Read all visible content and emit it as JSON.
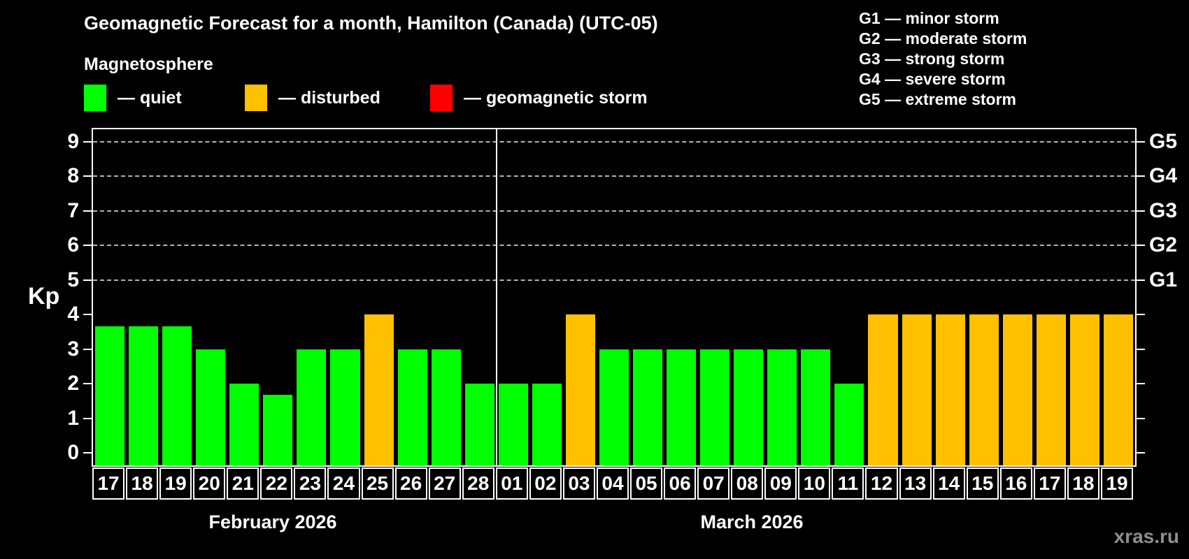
{
  "title": "Geomagnetic Forecast for a month, Hamilton (Canada) (UTC-05)",
  "legend": {
    "heading": "Magnetosphere",
    "items": [
      {
        "key": "quiet",
        "label": "— quiet",
        "color": "#00ff00"
      },
      {
        "key": "disturbed",
        "label": "— disturbed",
        "color": "#ffc000"
      },
      {
        "key": "storm",
        "label": "— geomagnetic storm",
        "color": "#ff0000"
      }
    ]
  },
  "storm_scale_legend": [
    {
      "code": "G1",
      "text": "G1 — minor storm"
    },
    {
      "code": "G2",
      "text": "G2 — moderate storm"
    },
    {
      "code": "G3",
      "text": "G3 — strong storm"
    },
    {
      "code": "G4",
      "text": "G4 — severe storm"
    },
    {
      "code": "G5",
      "text": "G5 — extreme storm"
    }
  ],
  "watermark": "xras.ru",
  "chart_data": {
    "type": "bar",
    "ylabel": "Kp",
    "ylim": [
      0,
      9
    ],
    "yticks": [
      0,
      1,
      2,
      3,
      4,
      5,
      6,
      7,
      8,
      9
    ],
    "gridlines_at": [
      5,
      6,
      7,
      8,
      9
    ],
    "grid": "dashed",
    "legend_position": "top-left",
    "right_axis_ticks": [
      {
        "kp": 5,
        "label": "G1"
      },
      {
        "kp": 6,
        "label": "G2"
      },
      {
        "kp": 7,
        "label": "G3"
      },
      {
        "kp": 8,
        "label": "G4"
      },
      {
        "kp": 9,
        "label": "G5"
      }
    ],
    "status_colors": {
      "quiet": "#00ff00",
      "disturbed": "#ffc000",
      "storm": "#ff0000"
    },
    "months": [
      {
        "label": "February 2026",
        "days": [
          {
            "day": "17",
            "kp": 3.67,
            "status": "quiet"
          },
          {
            "day": "18",
            "kp": 3.67,
            "status": "quiet"
          },
          {
            "day": "19",
            "kp": 3.67,
            "status": "quiet"
          },
          {
            "day": "20",
            "kp": 3,
            "status": "quiet"
          },
          {
            "day": "21",
            "kp": 2,
            "status": "quiet"
          },
          {
            "day": "22",
            "kp": 1.67,
            "status": "quiet"
          },
          {
            "day": "23",
            "kp": 3,
            "status": "quiet"
          },
          {
            "day": "24",
            "kp": 3,
            "status": "quiet"
          },
          {
            "day": "25",
            "kp": 4,
            "status": "disturbed"
          },
          {
            "day": "26",
            "kp": 3,
            "status": "quiet"
          },
          {
            "day": "27",
            "kp": 3,
            "status": "quiet"
          },
          {
            "day": "28",
            "kp": 2,
            "status": "quiet"
          }
        ]
      },
      {
        "label": "March 2026",
        "days": [
          {
            "day": "01",
            "kp": 2,
            "status": "quiet"
          },
          {
            "day": "02",
            "kp": 2,
            "status": "quiet"
          },
          {
            "day": "03",
            "kp": 4,
            "status": "disturbed"
          },
          {
            "day": "04",
            "kp": 3,
            "status": "quiet"
          },
          {
            "day": "05",
            "kp": 3,
            "status": "quiet"
          },
          {
            "day": "06",
            "kp": 3,
            "status": "quiet"
          },
          {
            "day": "07",
            "kp": 3,
            "status": "quiet"
          },
          {
            "day": "08",
            "kp": 3,
            "status": "quiet"
          },
          {
            "day": "09",
            "kp": 3,
            "status": "quiet"
          },
          {
            "day": "10",
            "kp": 3,
            "status": "quiet"
          },
          {
            "day": "11",
            "kp": 2,
            "status": "quiet"
          },
          {
            "day": "12",
            "kp": 4,
            "status": "disturbed"
          },
          {
            "day": "13",
            "kp": 4,
            "status": "disturbed"
          },
          {
            "day": "14",
            "kp": 4,
            "status": "disturbed"
          },
          {
            "day": "15",
            "kp": 4,
            "status": "disturbed"
          },
          {
            "day": "16",
            "kp": 4,
            "status": "disturbed"
          },
          {
            "day": "17",
            "kp": 4,
            "status": "disturbed"
          },
          {
            "day": "18",
            "kp": 4,
            "status": "disturbed"
          },
          {
            "day": "19",
            "kp": 4,
            "status": "disturbed"
          }
        ]
      }
    ]
  }
}
